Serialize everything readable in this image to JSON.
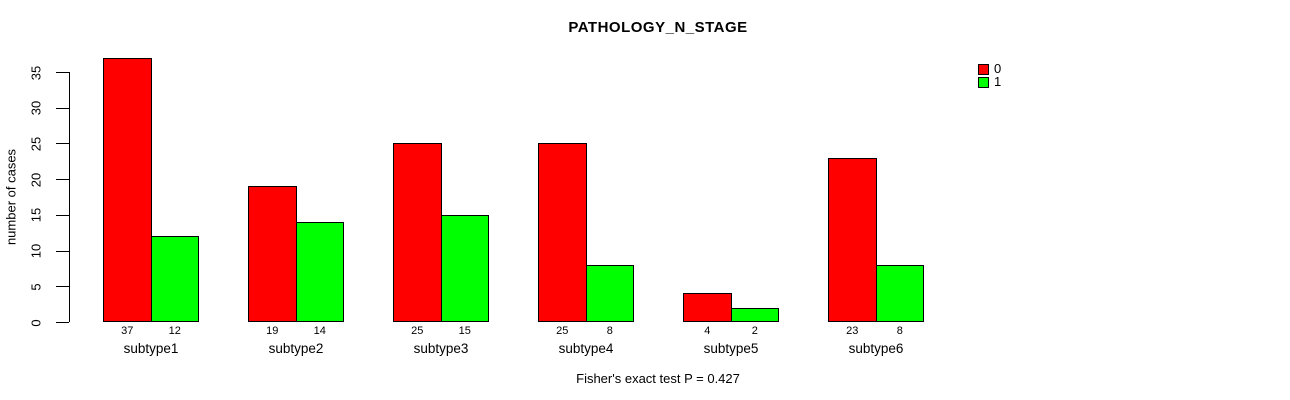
{
  "chart_data": {
    "type": "bar",
    "title": "PATHOLOGY_N_STAGE",
    "ylabel": "number of cases",
    "xlabel": "",
    "categories": [
      "subtype1",
      "subtype2",
      "subtype3",
      "subtype4",
      "subtype5",
      "subtype6"
    ],
    "series": [
      {
        "name": "0",
        "color": "#FF0000",
        "values": [
          37,
          19,
          25,
          25,
          4,
          23
        ]
      },
      {
        "name": "1",
        "color": "#00FF00",
        "values": [
          12,
          14,
          15,
          8,
          2,
          8
        ]
      }
    ],
    "yticks": [
      0,
      5,
      10,
      15,
      20,
      25,
      30,
      35
    ],
    "ylim": [
      0,
      35
    ],
    "grid": false,
    "legend_position": "top-right",
    "caption": "Fisher's exact test P = 0.427"
  }
}
